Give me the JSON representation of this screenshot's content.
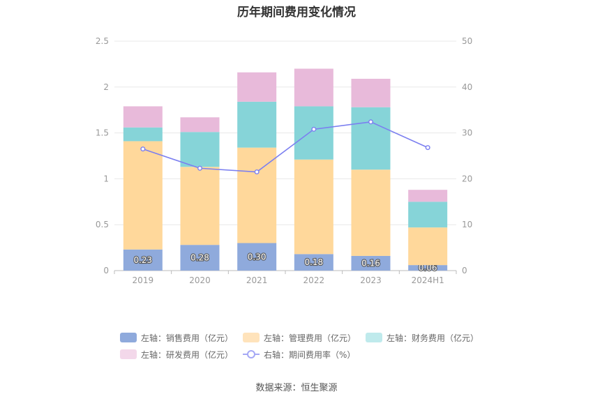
{
  "chart_data": {
    "type": "bar",
    "title": "历年期间费用变化情况",
    "categories": [
      "2019",
      "2020",
      "2021",
      "2022",
      "2023",
      "2024H1"
    ],
    "left_axis": {
      "ylim": [
        0,
        2.5
      ],
      "ticks": [
        "0",
        "0.5",
        "1",
        "1.5",
        "2",
        "2.5"
      ]
    },
    "right_axis": {
      "ylim": [
        0,
        50
      ],
      "ticks": [
        "0",
        "10",
        "20",
        "30",
        "40",
        "50"
      ]
    },
    "grid": true,
    "stacked": true,
    "series": [
      {
        "name": "左轴：销售费用（亿元）",
        "type": "bar",
        "axis": "left",
        "color": "#8faadc",
        "values": [
          0.23,
          0.28,
          0.3,
          0.18,
          0.16,
          0.06
        ],
        "labels": [
          "0.23",
          "0.28",
          "0.30",
          "0.18",
          "0.16",
          "0.06"
        ]
      },
      {
        "name": "左轴：管理费用（亿元）",
        "type": "bar",
        "axis": "left",
        "color": "#ffd89b",
        "values": [
          1.18,
          0.85,
          1.04,
          1.03,
          0.94,
          0.41
        ]
      },
      {
        "name": "左轴：财务费用（亿元）",
        "type": "bar",
        "axis": "left",
        "color": "#86d4d8",
        "values": [
          0.15,
          0.38,
          0.5,
          0.58,
          0.68,
          0.28
        ]
      },
      {
        "name": "左轴：研发费用（亿元）",
        "type": "bar",
        "axis": "left",
        "color": "#e8bada",
        "values": [
          0.23,
          0.16,
          0.32,
          0.41,
          0.31,
          0.13
        ]
      },
      {
        "name": "右轴：期间费用率（%）",
        "type": "line",
        "axis": "right",
        "color": "#7b7ff0",
        "values": [
          26.5,
          22.3,
          21.5,
          30.8,
          32.4,
          26.8
        ]
      }
    ]
  },
  "legend": {
    "row1": [
      "左轴：销售费用（亿元）",
      "左轴：管理费用（亿元）",
      "左轴：财务费用（亿元）"
    ],
    "row2": [
      "左轴：研发费用（亿元）",
      "右轴：期间费用率（%）"
    ]
  },
  "source": "数据来源：恒生聚源"
}
